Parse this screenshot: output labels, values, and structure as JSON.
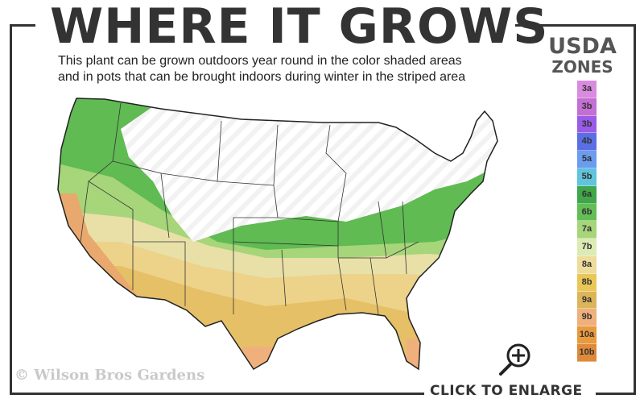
{
  "header": {
    "title": "WHERE IT GROWS",
    "subtitle_line1": "This plant can be grown outdoors year round in the color shaded areas",
    "subtitle_line2": "and in pots that can be brought indoors during winter in the striped area"
  },
  "legend": {
    "title_line1": "USDA",
    "title_line2": "ZONES",
    "zones": [
      {
        "label": "3a",
        "color": "#d98be0"
      },
      {
        "label": "3b",
        "color": "#c46fd4"
      },
      {
        "label": "3b",
        "color": "#9a5ce8"
      },
      {
        "label": "4b",
        "color": "#5a6fe3"
      },
      {
        "label": "5a",
        "color": "#6a9cf0"
      },
      {
        "label": "5b",
        "color": "#5fc4dc"
      },
      {
        "label": "6a",
        "color": "#3fa64a"
      },
      {
        "label": "6b",
        "color": "#62be55"
      },
      {
        "label": "7a",
        "color": "#a6d57a"
      },
      {
        "label": "7b",
        "color": "#dcebb4"
      },
      {
        "label": "8a",
        "color": "#eedc9a"
      },
      {
        "label": "8b",
        "color": "#e9c757"
      },
      {
        "label": "9a",
        "color": "#dcb45a"
      },
      {
        "label": "9b",
        "color": "#f0b07c"
      },
      {
        "label": "10a",
        "color": "#e99a3e"
      },
      {
        "label": "10b",
        "color": "#de8a3a"
      }
    ]
  },
  "footer": {
    "watermark": "© Wilson Bros Gardens",
    "enlarge_label": "CLICK TO ENLARGE",
    "enlarge_icon": "zoom-in-magnifier-icon"
  }
}
